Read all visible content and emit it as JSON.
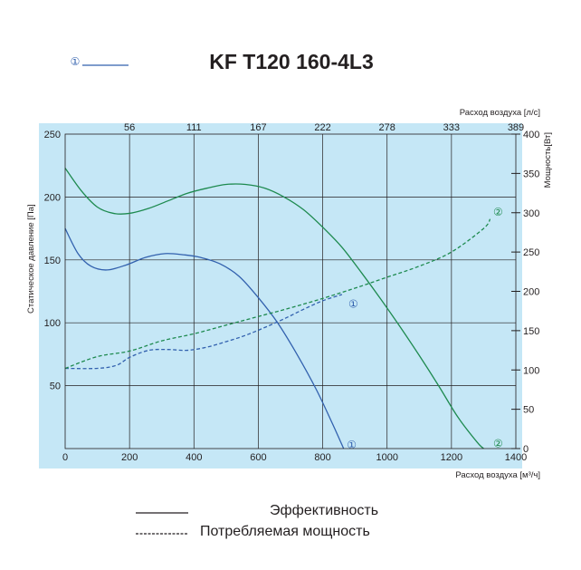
{
  "chart_data": {
    "type": "line",
    "title": "KF T120 160-4L3",
    "header_marker": "①",
    "xlabel": "Расход воздуха [м³/ч]",
    "xlabel_top": "Расход воздуха [л/с]",
    "ylabel": "Статическое давление [Па]",
    "ylabel_right": "Мощность[Вт]",
    "xlim": [
      0,
      1400
    ],
    "ylim": [
      0,
      250
    ],
    "ylim_right": [
      0,
      400
    ],
    "x_ticks": [
      0,
      200,
      400,
      600,
      800,
      1000,
      1200,
      1400
    ],
    "x_top_ticks": [
      {
        "pos": 200,
        "label": "56"
      },
      {
        "pos": 400,
        "label": "111"
      },
      {
        "pos": 600,
        "label": "167"
      },
      {
        "pos": 800,
        "label": "222"
      },
      {
        "pos": 1000,
        "label": "278"
      },
      {
        "pos": 1200,
        "label": "333"
      },
      {
        "pos": 1400,
        "label": "389"
      }
    ],
    "y_ticks": [
      50,
      100,
      150,
      200,
      250
    ],
    "y_right_ticks": [
      0,
      50,
      100,
      150,
      200,
      250,
      300,
      350,
      400
    ],
    "grid": true,
    "colors": {
      "background": "#c5e7f6",
      "blue": "#3261ae",
      "green": "#1e8a4f",
      "grid": "#231f20"
    },
    "series": [
      {
        "name": "Эффективность",
        "marker": "①",
        "axis": "left",
        "style": "solid",
        "color": "#3261ae",
        "points": [
          [
            0,
            175
          ],
          [
            40,
            155
          ],
          [
            80,
            145
          ],
          [
            130,
            142
          ],
          [
            190,
            146
          ],
          [
            250,
            152
          ],
          [
            310,
            155
          ],
          [
            370,
            154
          ],
          [
            420,
            152
          ],
          [
            480,
            147
          ],
          [
            540,
            137
          ],
          [
            600,
            120
          ],
          [
            660,
            100
          ],
          [
            720,
            75
          ],
          [
            780,
            47
          ],
          [
            830,
            20
          ],
          [
            865,
            0
          ]
        ]
      },
      {
        "name": "Эффективность",
        "marker": "②",
        "axis": "left",
        "style": "solid",
        "color": "#1e8a4f",
        "points": [
          [
            0,
            223
          ],
          [
            50,
            205
          ],
          [
            100,
            192
          ],
          [
            150,
            187
          ],
          [
            200,
            187
          ],
          [
            260,
            191
          ],
          [
            320,
            197
          ],
          [
            380,
            203
          ],
          [
            440,
            207
          ],
          [
            500,
            210
          ],
          [
            560,
            210
          ],
          [
            620,
            207
          ],
          [
            680,
            200
          ],
          [
            740,
            190
          ],
          [
            800,
            176
          ],
          [
            860,
            160
          ],
          [
            920,
            140
          ],
          [
            980,
            119
          ],
          [
            1040,
            97
          ],
          [
            1100,
            74
          ],
          [
            1160,
            50
          ],
          [
            1220,
            25
          ],
          [
            1280,
            5
          ],
          [
            1300,
            0
          ]
        ]
      },
      {
        "name": "Потребляемая мощность",
        "marker": "①",
        "axis": "right",
        "style": "dashed",
        "color": "#3261ae",
        "points": [
          [
            0,
            102
          ],
          [
            100,
            102
          ],
          [
            160,
            106
          ],
          [
            200,
            116
          ],
          [
            260,
            125
          ],
          [
            320,
            126
          ],
          [
            380,
            125
          ],
          [
            440,
            129
          ],
          [
            500,
            136
          ],
          [
            560,
            144
          ],
          [
            620,
            154
          ],
          [
            680,
            165
          ],
          [
            740,
            177
          ],
          [
            800,
            188
          ],
          [
            860,
            196
          ]
        ]
      },
      {
        "name": "Потребляемая мощность",
        "marker": "②",
        "axis": "right",
        "style": "dashed",
        "color": "#1e8a4f",
        "points": [
          [
            0,
            102
          ],
          [
            100,
            117
          ],
          [
            200,
            124
          ],
          [
            300,
            137
          ],
          [
            400,
            146
          ],
          [
            500,
            157
          ],
          [
            600,
            168
          ],
          [
            700,
            179
          ],
          [
            800,
            191
          ],
          [
            900,
            204
          ],
          [
            1000,
            218
          ],
          [
            1100,
            232
          ],
          [
            1200,
            250
          ],
          [
            1300,
            280
          ],
          [
            1320,
            292
          ]
        ]
      }
    ],
    "legend": {
      "solid": "Эффективность",
      "dashed": "Потребляемая мощность"
    }
  }
}
